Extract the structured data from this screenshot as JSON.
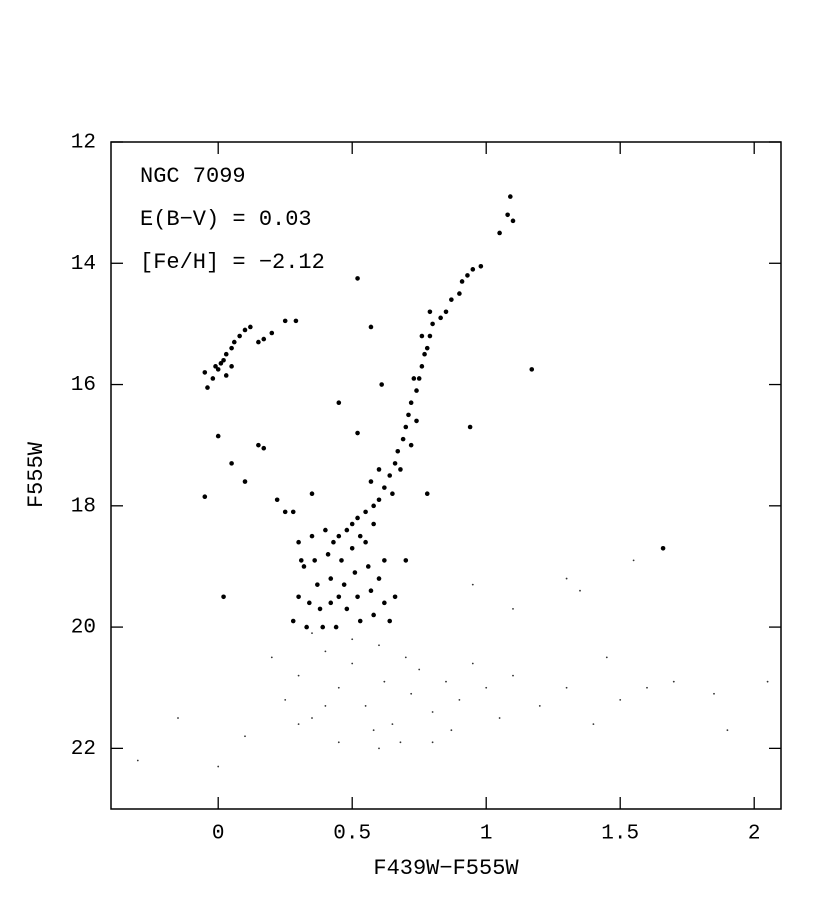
{
  "chart_data": {
    "type": "scatter",
    "annotations": [
      "NGC 7099",
      "E(B−V) = 0.03",
      "[Fe/H] = −2.12"
    ],
    "x_label": "F439W−F555W",
    "y_label": "F555W",
    "xlim": [
      -0.4,
      2.1
    ],
    "ylim": [
      23,
      12
    ],
    "xticks": [
      0,
      0.5,
      1,
      1.5,
      2
    ],
    "yticks": [
      12,
      14,
      16,
      18,
      20,
      22
    ],
    "series": [
      {
        "color": "#000000",
        "marker_size": 2.3,
        "x": [
          1.09,
          1.08,
          1.1,
          1.05,
          0.98,
          0.95,
          0.93,
          0.91,
          0.9,
          0.87,
          0.85,
          0.83,
          0.8,
          0.79,
          0.78,
          0.77,
          0.76,
          0.75,
          0.74,
          0.72,
          0.71,
          0.7,
          0.69,
          0.67,
          0.66,
          0.64,
          0.62,
          0.6,
          0.58,
          0.55,
          0.52,
          0.72,
          0.68,
          0.74,
          0.73,
          0.79,
          0.76,
          0.65,
          0.6,
          0.57,
          -0.05,
          -0.04,
          -0.02,
          0,
          0.01,
          0.02,
          0.03,
          0.05,
          0.06,
          0.08,
          0.1,
          0.12,
          0.15,
          0.17,
          0.2,
          0.25,
          0.29,
          0.03,
          0.05,
          -0.01,
          0,
          -0.05,
          0.02,
          0.05,
          0.1,
          0.15,
          0.17,
          0.22,
          0.25,
          0.28,
          0.35,
          0.45,
          0.52,
          0.57,
          0.61,
          0.78,
          0.94,
          1.17,
          1.66,
          0.52,
          0.7,
          0.3,
          0.32,
          0.3,
          0.28,
          0.33,
          0.35,
          0.36,
          0.37,
          0.38,
          0.4,
          0.41,
          0.42,
          0.42,
          0.44,
          0.45,
          0.46,
          0.47,
          0.48,
          0.5,
          0.5,
          0.51,
          0.52,
          0.53,
          0.55,
          0.56,
          0.57,
          0.58,
          0.6,
          0.62,
          0.64,
          0.39,
          0.34,
          0.31,
          0.43,
          0.48,
          0.53,
          0.58,
          0.62,
          0.66,
          0.45
        ],
        "values": [
          12.9,
          13.2,
          13.3,
          13.5,
          14.05,
          14.1,
          14.2,
          14.3,
          14.5,
          14.6,
          14.8,
          14.9,
          15.0,
          15.2,
          15.4,
          15.5,
          15.7,
          15.9,
          16.1,
          16.3,
          16.5,
          16.7,
          16.9,
          17.1,
          17.3,
          17.5,
          17.7,
          17.9,
          18.0,
          18.1,
          18.2,
          17.0,
          17.4,
          16.6,
          15.9,
          14.8,
          15.2,
          17.8,
          17.4,
          17.6,
          15.8,
          16.05,
          15.9,
          15.75,
          15.65,
          15.6,
          15.5,
          15.4,
          15.3,
          15.2,
          15.1,
          15.05,
          15.3,
          15.25,
          15.15,
          14.95,
          14.95,
          15.85,
          15.7,
          15.7,
          16.85,
          17.85,
          19.5,
          17.3,
          17.6,
          17.0,
          17.05,
          17.9,
          18.1,
          18.1,
          17.8,
          16.3,
          14.25,
          15.05,
          16.0,
          17.8,
          16.7,
          15.75,
          18.7,
          16.8,
          18.9,
          18.6,
          19.0,
          19.5,
          19.9,
          20.0,
          18.5,
          18.9,
          19.3,
          19.7,
          18.4,
          18.8,
          19.2,
          19.6,
          20.0,
          18.5,
          18.9,
          19.3,
          19.7,
          18.3,
          18.7,
          19.1,
          19.5,
          19.9,
          18.6,
          19.0,
          19.4,
          19.8,
          19.2,
          19.6,
          19.9,
          20.0,
          19.6,
          18.9,
          18.6,
          18.4,
          18.5,
          18.3,
          18.9,
          19.5,
          19.5
        ]
      },
      {
        "color": "#333333",
        "marker_size": 0.9,
        "x": [
          0.2,
          0.25,
          0.3,
          0.35,
          0.4,
          0.45,
          0.5,
          0.55,
          0.6,
          0.62,
          0.65,
          0.7,
          0.72,
          0.75,
          0.8,
          0.85,
          0.9,
          0.95,
          1.0,
          1.05,
          1.1,
          1.2,
          1.3,
          1.4,
          1.5,
          1.6,
          1.7,
          1.85,
          1.9,
          2.05,
          -0.3,
          -0.15,
          0.0,
          0.1,
          0.45,
          0.6,
          0.8,
          1.45,
          1.1,
          0.95,
          1.3,
          1.55,
          1.35,
          0.35,
          0.5,
          0.58,
          0.68,
          0.4,
          0.3,
          0.87
        ],
        "values": [
          20.5,
          21.2,
          20.8,
          21.5,
          20.4,
          21.0,
          20.6,
          21.3,
          20.3,
          20.9,
          21.6,
          20.5,
          21.1,
          20.7,
          21.4,
          20.9,
          21.2,
          20.6,
          21.0,
          21.5,
          20.8,
          21.3,
          21.0,
          21.6,
          21.2,
          21.0,
          20.9,
          21.1,
          21.7,
          20.9,
          22.2,
          21.5,
          22.3,
          21.8,
          21.9,
          22.0,
          21.9,
          20.5,
          19.7,
          19.3,
          19.2,
          18.9,
          19.4,
          20.1,
          20.2,
          21.7,
          21.9,
          21.3,
          21.6,
          21.7
        ]
      }
    ]
  }
}
